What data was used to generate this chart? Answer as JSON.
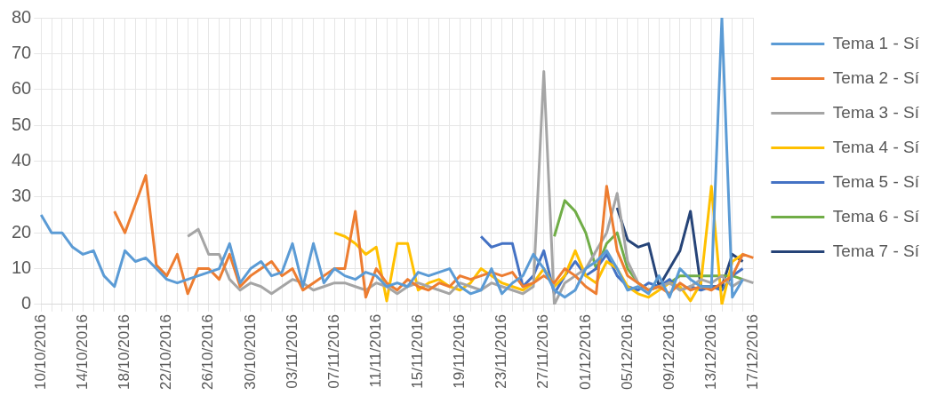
{
  "chart_data": {
    "type": "line",
    "categories": [
      "10/10/2016",
      null,
      null,
      null,
      "14/10/2016",
      null,
      null,
      null,
      "18/10/2016",
      null,
      null,
      null,
      "22/10/2016",
      null,
      null,
      null,
      "26/10/2016",
      null,
      null,
      null,
      "30/10/2016",
      null,
      null,
      null,
      "03/11/2016",
      null,
      null,
      null,
      "07/11/2016",
      null,
      null,
      null,
      "11/11/2016",
      null,
      null,
      null,
      "15/11/2016",
      null,
      null,
      null,
      "19/11/2016",
      null,
      null,
      null,
      "23/11/2016",
      null,
      null,
      null,
      "27/11/2016",
      null,
      null,
      null,
      "01/12/2016",
      null,
      null,
      null,
      "05/12/2016",
      null,
      null,
      null,
      "09/12/2016",
      null,
      null,
      null,
      "13/12/2016",
      null,
      null,
      null,
      "17/12/2016"
    ],
    "series": [
      {
        "name": "Tema 1 - Sí",
        "color": "#5b9bd5",
        "values": [
          25,
          20,
          20,
          16,
          14,
          15,
          8,
          5,
          15,
          12,
          13,
          10,
          7,
          6,
          7,
          8,
          9,
          10,
          17,
          6,
          10,
          12,
          8,
          9,
          17,
          5,
          17,
          6,
          10,
          8,
          7,
          9,
          8,
          5,
          6,
          5,
          9,
          8,
          9,
          10,
          5,
          3,
          4,
          10,
          3,
          6,
          8,
          14,
          10,
          4,
          2,
          4,
          10,
          12,
          15,
          10,
          4,
          5,
          3,
          8,
          2,
          10,
          7,
          5,
          5,
          80,
          2,
          7,
          null
        ]
      },
      {
        "name": "Tema 2 - Sí",
        "color": "#ed7d31",
        "values": [
          null,
          null,
          null,
          null,
          null,
          null,
          null,
          26,
          20,
          28,
          36,
          11,
          8,
          14,
          3,
          10,
          10,
          7,
          14,
          5,
          8,
          10,
          12,
          8,
          10,
          4,
          6,
          8,
          10,
          10,
          26,
          2,
          10,
          6,
          4,
          7,
          5,
          4,
          6,
          5,
          8,
          7,
          8,
          9,
          8,
          9,
          5,
          6,
          8,
          6,
          10,
          8,
          5,
          3,
          33,
          15,
          8,
          6,
          4,
          5,
          3,
          6,
          4,
          5,
          4,
          6,
          8,
          14,
          13
        ]
      },
      {
        "name": "Tema 3 - Sí",
        "color": "#a5a5a5",
        "values": [
          null,
          null,
          null,
          null,
          null,
          null,
          null,
          null,
          null,
          null,
          null,
          null,
          null,
          null,
          19,
          21,
          14,
          14,
          7,
          4,
          6,
          5,
          3,
          5,
          7,
          6,
          4,
          5,
          6,
          6,
          5,
          4,
          6,
          5,
          3,
          5,
          6,
          5,
          4,
          3,
          6,
          5,
          4,
          6,
          5,
          4,
          3,
          5,
          65,
          0,
          6,
          8,
          10,
          15,
          20,
          31,
          12,
          6,
          4,
          5,
          6,
          4,
          5,
          7,
          6,
          8,
          5,
          7,
          6
        ]
      },
      {
        "name": "Tema 4 - Sí",
        "color": "#ffc000",
        "values": [
          null,
          null,
          null,
          null,
          null,
          null,
          null,
          null,
          null,
          null,
          null,
          null,
          null,
          null,
          null,
          null,
          null,
          null,
          null,
          null,
          null,
          null,
          null,
          null,
          null,
          null,
          null,
          null,
          20,
          19,
          17,
          14,
          16,
          1,
          17,
          17,
          4,
          6,
          7,
          5,
          4,
          6,
          10,
          8,
          6,
          5,
          4,
          6,
          10,
          5,
          8,
          15,
          8,
          6,
          12,
          10,
          5,
          3,
          2,
          4,
          6,
          5,
          1,
          6,
          33,
          0,
          12,
          14,
          null
        ]
      },
      {
        "name": "Tema 5 - Sí",
        "color": "#4472c4",
        "values": [
          null,
          null,
          null,
          null,
          null,
          null,
          null,
          null,
          null,
          null,
          null,
          null,
          null,
          null,
          null,
          null,
          null,
          null,
          null,
          null,
          null,
          null,
          null,
          null,
          null,
          null,
          null,
          null,
          null,
          null,
          null,
          null,
          null,
          null,
          null,
          null,
          null,
          null,
          null,
          null,
          null,
          null,
          19,
          16,
          17,
          17,
          5,
          8,
          15,
          3,
          8,
          12,
          8,
          10,
          14,
          8,
          5,
          4,
          6,
          5,
          7,
          4,
          5,
          4,
          5,
          4,
          8,
          10,
          null
        ]
      },
      {
        "name": "Tema 6 - Sí",
        "color": "#70ad47",
        "values": [
          null,
          null,
          null,
          null,
          null,
          null,
          null,
          null,
          null,
          null,
          null,
          null,
          null,
          null,
          null,
          null,
          null,
          null,
          null,
          null,
          null,
          null,
          null,
          null,
          null,
          null,
          null,
          null,
          null,
          null,
          null,
          null,
          null,
          null,
          null,
          null,
          null,
          null,
          null,
          null,
          null,
          null,
          null,
          null,
          null,
          null,
          null,
          null,
          null,
          19,
          29,
          26,
          20,
          10,
          17,
          20,
          10,
          6,
          4,
          5,
          6,
          8,
          8,
          8,
          8,
          8,
          8,
          7,
          null
        ]
      },
      {
        "name": "Tema 7 - Sí",
        "color": "#264478",
        "values": [
          null,
          null,
          null,
          null,
          null,
          null,
          null,
          null,
          null,
          null,
          null,
          null,
          null,
          null,
          null,
          null,
          null,
          null,
          null,
          null,
          null,
          null,
          null,
          null,
          null,
          null,
          null,
          null,
          null,
          null,
          null,
          null,
          null,
          null,
          null,
          null,
          null,
          null,
          null,
          null,
          null,
          null,
          null,
          null,
          null,
          null,
          null,
          null,
          null,
          null,
          null,
          null,
          null,
          null,
          null,
          27,
          18,
          16,
          17,
          5,
          10,
          15,
          26,
          5,
          5,
          5,
          14,
          12,
          null
        ]
      }
    ],
    "ylim": [
      0,
      80
    ],
    "yticks": [
      0,
      10,
      20,
      30,
      40,
      50,
      60,
      70,
      80
    ],
    "grid": true,
    "legend": "right",
    "marker": "none",
    "line_style": "solid"
  }
}
